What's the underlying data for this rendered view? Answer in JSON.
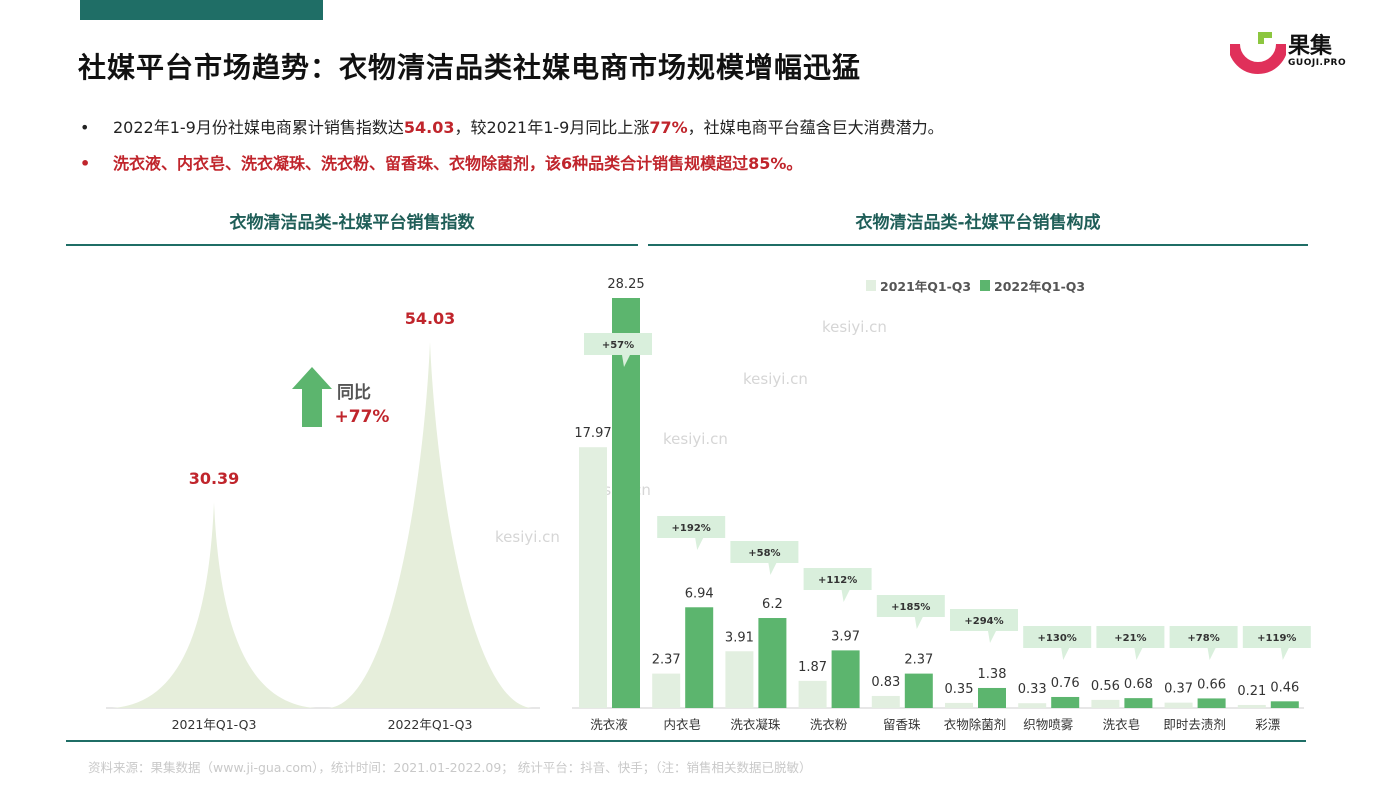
{
  "title": "社媒平台市场趋势：衣物清洁品类社媒电商市场规模增幅迅猛",
  "brand": {
    "name": "果集",
    "sub": "GUOJI.PRO"
  },
  "bullets": {
    "b1_part1": "2022年1-9月份社媒电商累计销售指数达",
    "b1_val1": "54.03",
    "b1_part2": "，较2021年1-9月同比上涨",
    "b1_val2": "77%",
    "b1_part3": "，社媒电商平台蕴含巨大消费潜力。",
    "b2": "洗衣液、内衣皂、洗衣凝珠、洗衣粉、留香珠、衣物除菌剂，该6种品类合计销售规模超过85%。",
    "marker": "•"
  },
  "panels": {
    "left_title": "衣物清洁品类-社媒平台销售指数",
    "right_title": "衣物清洁品类-社媒平台销售构成"
  },
  "footer": "资料来源：果集数据（www.ji-gua.com），统计时间：2021.01-2022.09；    统计平台：抖音、快手；（注：销售相关数据已脱敏）",
  "watermark": "kesiyi.cn",
  "colors": {
    "accent_teal": "#1f6e66",
    "red": "#c0252c",
    "green_2022": "#5cb56e",
    "light_2021": "#e2efe0",
    "peak_fill": "#e6eedb",
    "arrow_green": "#5cb56e",
    "callout_bg": "#d9efdc",
    "brand_red": "#e0305a",
    "brand_green": "#8cc63f"
  },
  "chart_data": [
    {
      "type": "area",
      "title": "衣物清洁品类-社媒平台销售指数",
      "categories": [
        "2021年Q1-Q3",
        "2022年Q1-Q3"
      ],
      "values": [
        30.39,
        54.03
      ],
      "value_labels": [
        "30.39",
        "54.03"
      ],
      "annotation": {
        "label": "同比",
        "value": "+77%"
      },
      "ylim": [
        0,
        54.03
      ]
    },
    {
      "type": "bar",
      "title": "衣物清洁品类-社媒平台销售构成",
      "legend_position": "top-right",
      "categories": [
        "洗衣液",
        "内衣皂",
        "洗衣凝珠",
        "洗衣粉",
        "留香珠",
        "衣物除菌剂",
        "织物喷雾",
        "洗衣皂",
        "即时去渍剂",
        "彩漂"
      ],
      "series": [
        {
          "name": "2021年Q1-Q3",
          "values": [
            17.97,
            2.37,
            3.91,
            1.87,
            0.83,
            0.35,
            0.33,
            0.56,
            0.37,
            0.21
          ]
        },
        {
          "name": "2022年Q1-Q3",
          "values": [
            28.25,
            6.94,
            6.2,
            3.97,
            2.37,
            1.38,
            0.76,
            0.68,
            0.66,
            0.46
          ]
        }
      ],
      "value_labels": {
        "s2021": [
          "17.97",
          "2.37",
          "3.91",
          "1.87",
          "0.83",
          "0.35",
          "0.33",
          "0.56",
          "0.37",
          "0.21"
        ],
        "s2022": [
          "28.25",
          "6.94",
          "6.2",
          "3.97",
          "2.37",
          "1.38",
          "0.76",
          "0.68",
          "0.66",
          "0.46"
        ]
      },
      "growth_labels": [
        "+57%",
        "+192%",
        "+58%",
        "+112%",
        "+185%",
        "+294%",
        "+130%",
        "+21%",
        "+78%",
        "+119%"
      ],
      "ylim": [
        0,
        28.25
      ]
    }
  ]
}
